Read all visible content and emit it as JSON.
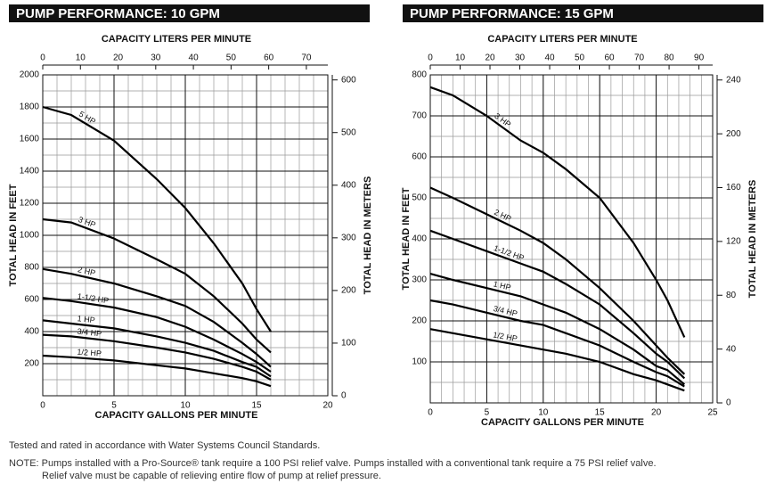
{
  "chart_data": [
    {
      "type": "line",
      "title": "PUMP PERFORMANCE: 10 GPM",
      "x_label": "CAPACITY GALLONS PER MINUTE",
      "x2_label": "CAPACITY LITERS PER MINUTE",
      "y_label": "TOTAL HEAD IN FEET",
      "y2_label": "TOTAL HEAD IN METERS",
      "x": [
        0,
        2,
        5,
        8,
        10,
        12,
        14,
        15,
        16
      ],
      "xlim": [
        0,
        20
      ],
      "xticks": [
        0,
        5,
        10,
        15,
        20
      ],
      "x2lim": [
        0,
        75.7
      ],
      "x2ticks": [
        0,
        10,
        20,
        30,
        40,
        50,
        60,
        70
      ],
      "ylim": [
        0,
        2000
      ],
      "yticks": [
        200,
        400,
        600,
        800,
        1000,
        1200,
        1400,
        1600,
        1800,
        2000
      ],
      "y2lim": [
        0,
        609.6
      ],
      "y2ticks": [
        0,
        100,
        200,
        300,
        400,
        500,
        600
      ],
      "grid": true,
      "minor_grid": {
        "x": 1,
        "y": 100
      },
      "color": "#000000",
      "series": [
        {
          "name": "5 HP",
          "values": [
            1800,
            1750,
            1590,
            1350,
            1170,
            950,
            700,
            540,
            400
          ]
        },
        {
          "name": "3 HP",
          "values": [
            1100,
            1080,
            980,
            850,
            760,
            620,
            450,
            350,
            270
          ]
        },
        {
          "name": "2 HP",
          "values": [
            790,
            760,
            700,
            620,
            560,
            460,
            330,
            260,
            180
          ]
        },
        {
          "name": "1-1/2 HP",
          "values": [
            610,
            590,
            550,
            490,
            430,
            350,
            260,
            210,
            150
          ]
        },
        {
          "name": "1 HP",
          "values": [
            470,
            450,
            420,
            370,
            330,
            280,
            210,
            180,
            120
          ]
        },
        {
          "name": "3/4 HP",
          "values": [
            380,
            370,
            340,
            300,
            270,
            230,
            180,
            150,
            100
          ]
        },
        {
          "name": "1/2 HP",
          "values": [
            250,
            240,
            220,
            190,
            170,
            140,
            110,
            90,
            60
          ]
        }
      ]
    },
    {
      "type": "line",
      "title": "PUMP PERFORMANCE: 15 GPM",
      "x_label": "CAPACITY GALLONS PER MINUTE",
      "x2_label": "CAPACITY LITERS PER MINUTE",
      "y_label": "TOTAL HEAD IN FEET",
      "y2_label": "TOTAL HEAD IN METERS",
      "x": [
        0,
        2,
        5,
        8,
        10,
        12,
        15,
        18,
        20,
        21,
        22.5
      ],
      "xlim": [
        0,
        25
      ],
      "xticks": [
        0,
        5,
        10,
        15,
        20,
        25
      ],
      "x2lim": [
        0,
        94.6
      ],
      "x2ticks": [
        0,
        10,
        20,
        30,
        40,
        50,
        60,
        70,
        80,
        90
      ],
      "ylim": [
        0,
        800
      ],
      "yticks": [
        100,
        200,
        300,
        400,
        500,
        600,
        700,
        800
      ],
      "y2lim": [
        0,
        243.8
      ],
      "y2ticks": [
        0,
        40,
        80,
        120,
        160,
        200,
        240
      ],
      "grid": true,
      "minor_grid": {
        "x": 1,
        "y": 50
      },
      "color": "#000000",
      "series": [
        {
          "name": "3 HP",
          "values": [
            770,
            750,
            700,
            640,
            610,
            570,
            500,
            390,
            300,
            250,
            160
          ]
        },
        {
          "name": "2 HP",
          "values": [
            525,
            500,
            460,
            420,
            390,
            350,
            280,
            200,
            140,
            110,
            70
          ]
        },
        {
          "name": "1-1/2 HP",
          "values": [
            420,
            400,
            370,
            340,
            320,
            290,
            240,
            170,
            120,
            100,
            60
          ]
        },
        {
          "name": "1 HP",
          "values": [
            315,
            300,
            280,
            260,
            240,
            220,
            180,
            130,
            90,
            80,
            45
          ]
        },
        {
          "name": "3/4 HP",
          "values": [
            250,
            240,
            220,
            200,
            190,
            170,
            140,
            100,
            75,
            65,
            40
          ]
        },
        {
          "name": "1/2 HP",
          "values": [
            180,
            170,
            155,
            140,
            130,
            120,
            100,
            70,
            55,
            45,
            30
          ]
        }
      ]
    }
  ],
  "footer": {
    "text": "Tested and rated in accordance with Water Systems Council Standards.",
    "note": [
      "NOTE: Pumps installed with a Pro-Source® tank require a 100 PSI relief valve. Pumps installed with a conventional tank require a 75 PSI relief valve.",
      "Relief valve must be capable of relieving entire flow of pump at relief pressure."
    ]
  }
}
